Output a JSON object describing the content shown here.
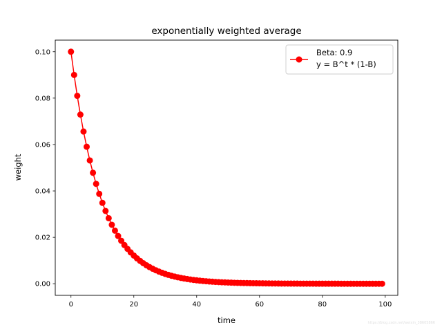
{
  "chart_data": {
    "type": "line",
    "title": "exponentially weighted average",
    "xlabel": "time",
    "ylabel": "weight",
    "xlim": [
      -5,
      104
    ],
    "ylim": [
      -0.005,
      0.105
    ],
    "grid": false,
    "legend_position": "top-right",
    "legend_lines": [
      "Beta: 0.9",
      "y = B^t * (1-B)"
    ],
    "x_ticks": [
      0,
      20,
      40,
      60,
      80,
      100
    ],
    "x_tick_labels": [
      "0",
      "20",
      "40",
      "60",
      "80",
      "100"
    ],
    "y_ticks": [
      0.0,
      0.02,
      0.04,
      0.06,
      0.08,
      0.1
    ],
    "y_tick_labels": [
      "0.00",
      "0.02",
      "0.04",
      "0.06",
      "0.08",
      "0.10"
    ],
    "series": [
      {
        "name": "Beta: 0.9\ny = B^t * (1-B)",
        "color": "#ff0000",
        "marker": "circle",
        "x": [
          0,
          1,
          2,
          3,
          4,
          5,
          6,
          7,
          8,
          9,
          10,
          11,
          12,
          13,
          14,
          15,
          16,
          17,
          18,
          19,
          20,
          21,
          22,
          23,
          24,
          25,
          26,
          27,
          28,
          29,
          30,
          31,
          32,
          33,
          34,
          35,
          36,
          37,
          38,
          39,
          40,
          41,
          42,
          43,
          44,
          45,
          46,
          47,
          48,
          49,
          50,
          51,
          52,
          53,
          54,
          55,
          56,
          57,
          58,
          59,
          60,
          61,
          62,
          63,
          64,
          65,
          66,
          67,
          68,
          69,
          70,
          71,
          72,
          73,
          74,
          75,
          76,
          77,
          78,
          79,
          80,
          81,
          82,
          83,
          84,
          85,
          86,
          87,
          88,
          89,
          90,
          91,
          92,
          93,
          94,
          95,
          96,
          97,
          98,
          99
        ],
        "y": [
          0.1,
          0.09,
          0.081,
          0.0729,
          0.06561,
          0.059049,
          0.0531441,
          0.04782969,
          0.043046721,
          0.0387420489,
          0.03486784401,
          0.031381059609,
          0.0282429536481,
          0.02541865828329,
          0.022876792454961,
          0.0205891132094649,
          0.0185302018885184,
          0.0166771816996666,
          0.0150094635296999,
          0.0135085171767299,
          0.0121576654590569,
          0.0109418989131512,
          0.00984770902183611,
          0.0088629381196525,
          0.00797664430768725,
          0.00717897987691853,
          0.00646108188922667,
          0.00581497370030401,
          0.00523347633027361,
          0.00471012869724625,
          0.00423911582752162,
          0.00381520424476946,
          0.00343368382029251,
          0.00309031543826326,
          0.00278128389443694,
          0.00250315550499324,
          0.00225283995449392,
          0.00202755595904453,
          0.00182480036314008,
          0.00164232032682607,
          0.00147808829414346,
          0.00133027946472911,
          0.0011972515182562,
          0.00107752636643058,
          0.000969773729787523,
          0.000872796356808771,
          0.000785516721127894,
          0.000706965049015104,
          0.000636268544113594,
          0.000572641689702235,
          0.000515377520732011,
          0.00046383976865881,
          0.000417455791792929,
          0.000375710212613636,
          0.000338139191352273,
          0.000304325272217045,
          0.000273892744995341,
          0.000246503470495807,
          0.000221853123446226,
          0.000199667811101604,
          0.000179701029991443,
          0.000161730926992299,
          0.000145557834293069,
          0.000131002050863762,
          0.000117901845777386,
          0.000106111661199647,
          9.55004950796825e-05,
          8.59504455717143e-05,
          7.73554010145428e-05,
          6.96198609130885e-05,
          6.26578748217797e-05,
          5.63920873396017e-05,
          5.07528786056416e-05,
          4.56775907450774e-05,
          4.11098316705697e-05,
          3.69988485035127e-05,
          3.32989636531614e-05,
          2.99690672878453e-05,
          2.69721605590608e-05,
          2.42749445031547e-05,
          2.18474500528392e-05,
          1.96627050475553e-05,
          1.76964345427998e-05,
          1.59267910885198e-05,
          1.43341119796678e-05,
          1.2900700781701e-05,
          1.16106307035309e-05,
          1.04495676331778e-05,
          9.40461086986005e-06,
          8.46414978287404e-06,
          7.61773480458664e-06,
          6.85596132412797e-06,
          6.17036519171518e-06,
          5.55332867254366e-06,
          4.99799580528929e-06,
          4.49819622476036e-06,
          4.04837660228433e-06,
          3.6435389420559e-06,
          3.27918504785031e-06,
          2.95126654306528e-06
        ]
      }
    ]
  },
  "watermark": "https://blog.csdn.net/weixin_38605866"
}
